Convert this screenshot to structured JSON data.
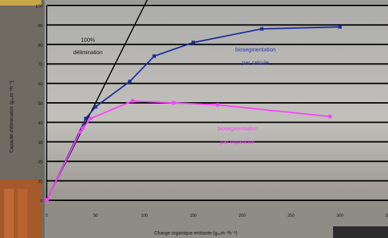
{
  "chart_data": {
    "type": "line",
    "title": "",
    "xlabel": "Charge organique entrante (gₓₒm⁻²h⁻¹)",
    "ylabel": "Capacité d'élimination (gₓₒm⁻²h⁻¹)",
    "xlim": [
      0,
      300
    ],
    "ylim": [
      0,
      100
    ],
    "x_ticks": [
      "0",
      "50",
      "100",
      "150",
      "200",
      "250",
      "300",
      "350"
    ],
    "y_ticks": [
      "0",
      "10",
      "20",
      "30",
      "40",
      "50",
      "60",
      "70",
      "80",
      "90",
      "100"
    ],
    "grid": "horizontal",
    "series": [
      {
        "name": "100% délimination",
        "label_lines": [
          "100%",
          "délimination"
        ],
        "color": "#000000",
        "x": [
          0,
          105
        ],
        "y": [
          0,
          105
        ]
      },
      {
        "name": "biosegmentation parcaleuse",
        "label_lines": [
          "biosegmentation",
          "par calcule"
        ],
        "color": "#1a2f9a",
        "x": [
          0,
          40,
          50,
          85,
          110,
          150,
          220,
          300
        ],
        "y": [
          0,
          42,
          48,
          61,
          74,
          81,
          88,
          89
        ]
      },
      {
        "name": "biosegmentation par expansion",
        "label_lines": [
          "biosegmentation",
          "par expansion"
        ],
        "color": "#ff40ff",
        "x": [
          0,
          34,
          37,
          45,
          88,
          130,
          175,
          290
        ],
        "y": [
          0,
          35,
          37,
          42,
          51,
          50,
          49,
          43
        ]
      }
    ]
  }
}
